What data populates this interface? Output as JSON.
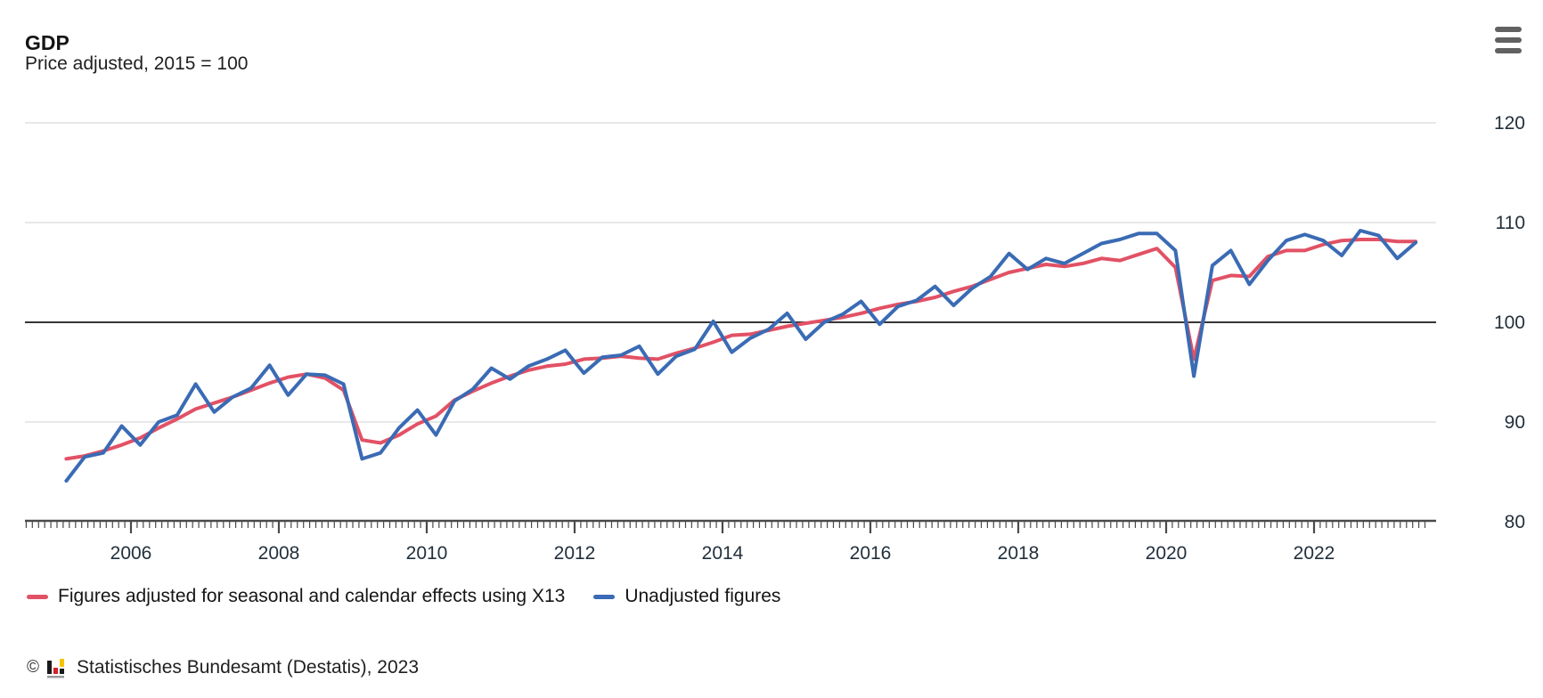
{
  "header": {
    "title": "GDP",
    "subtitle": "Price adjusted, 2015 = 100"
  },
  "legend": [
    {
      "label": "Figures adjusted for seasonal and calendar effects using X13",
      "color": "#e25165"
    },
    {
      "label": "Unadjusted figures",
      "color": "#3a6bb4"
    }
  ],
  "footer": {
    "copyright": "©",
    "source": "Statistisches Bundesamt (Destatis), 2023"
  },
  "colors": {
    "adjusted_line": "#e25165",
    "unadjusted_line": "#3a6bb4",
    "gridline": "#e0e0e0",
    "baseline_100": "#1a1a1a",
    "axis": "#4a4a4a",
    "tick": "#4a4a4a",
    "axis_label": "#22303c",
    "menu_icon": "#616161",
    "logo_black": "#1a1a1a",
    "logo_red": "#d1232a",
    "logo_gold": "#f5c400",
    "logo_gray": "#9a9a9a"
  },
  "chart_data": {
    "type": "line",
    "title": "GDP",
    "subtitle": "Price adjusted, 2015 = 100",
    "frequency": "quarterly",
    "x_start": "2005 Q1",
    "x_end": "2023 Q2",
    "x_tick_labels": [
      2006,
      2008,
      2010,
      2012,
      2014,
      2016,
      2018,
      2020,
      2022
    ],
    "y_ticks": [
      80,
      90,
      100,
      110,
      120
    ],
    "ylim": [
      80,
      120
    ],
    "baseline": 100,
    "grid": "horizontal",
    "legend_position": "bottom",
    "series": [
      {
        "name": "Figures adjusted for seasonal and calendar effects using X13",
        "color": "#e25165",
        "values": [
          86.3,
          86.6,
          87.1,
          87.7,
          88.4,
          89.4,
          90.3,
          91.3,
          91.9,
          92.5,
          93.2,
          93.9,
          94.5,
          94.8,
          94.4,
          93.2,
          88.2,
          87.9,
          88.7,
          89.8,
          90.6,
          92.2,
          93.1,
          93.9,
          94.6,
          95.2,
          95.6,
          95.8,
          96.3,
          96.4,
          96.6,
          96.4,
          96.3,
          96.9,
          97.4,
          98.0,
          98.7,
          98.8,
          99.2,
          99.6,
          99.9,
          100.2,
          100.5,
          100.9,
          101.4,
          101.8,
          102.1,
          102.5,
          103.1,
          103.6,
          104.3,
          105.0,
          105.4,
          105.8,
          105.6,
          105.9,
          106.4,
          106.2,
          106.8,
          107.4,
          105.5,
          96.3,
          104.2,
          104.7,
          104.6,
          106.6,
          107.2,
          107.2,
          107.8,
          108.2,
          108.3,
          108.3,
          108.1,
          108.1
        ]
      },
      {
        "name": "Unadjusted figures",
        "color": "#3a6bb4",
        "values": [
          84.1,
          86.5,
          86.9,
          89.6,
          87.7,
          90.0,
          90.7,
          93.8,
          91.0,
          92.5,
          93.4,
          95.7,
          92.7,
          94.8,
          94.7,
          93.8,
          86.3,
          86.9,
          89.4,
          91.2,
          88.7,
          92.1,
          93.3,
          95.4,
          94.3,
          95.6,
          96.3,
          97.2,
          94.9,
          96.5,
          96.7,
          97.6,
          94.8,
          96.6,
          97.3,
          100.1,
          97.0,
          98.4,
          99.3,
          100.9,
          98.3,
          100.0,
          100.8,
          102.1,
          99.8,
          101.6,
          102.2,
          103.6,
          101.7,
          103.4,
          104.6,
          106.9,
          105.3,
          106.4,
          105.9,
          106.9,
          107.9,
          108.3,
          108.9,
          108.9,
          107.2,
          94.6,
          105.7,
          107.2,
          103.8,
          106.2,
          108.2,
          108.8,
          108.2,
          106.7,
          109.2,
          108.7,
          106.4,
          108.0
        ]
      }
    ]
  }
}
